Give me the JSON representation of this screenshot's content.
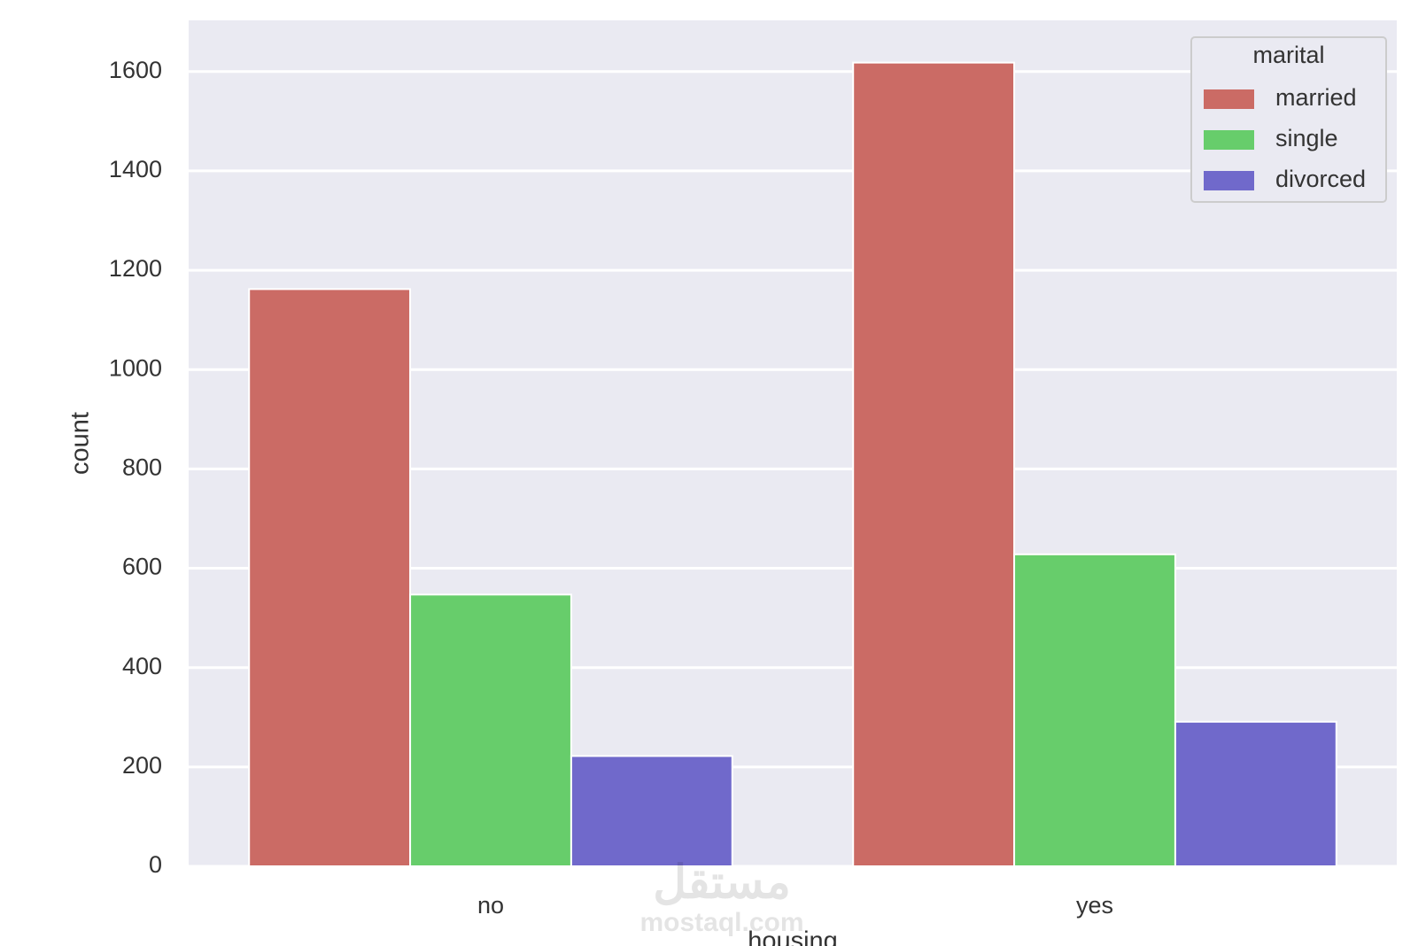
{
  "chart_data": {
    "type": "bar",
    "x_label": "housing",
    "y_label": "count",
    "categories": [
      "no",
      "yes"
    ],
    "series": [
      {
        "name": "married",
        "color": "#cb6b65",
        "values": [
          1162,
          1618
        ]
      },
      {
        "name": "single",
        "color": "#67cd6b",
        "values": [
          547,
          628
        ]
      },
      {
        "name": "divorced",
        "color": "#7069cb",
        "values": [
          222,
          291
        ]
      }
    ],
    "legend_title": "marital",
    "legend": "upper right",
    "ylim": [
      0,
      1703
    ],
    "yticks": [
      0,
      200,
      400,
      600,
      800,
      1000,
      1200,
      1400,
      1600
    ],
    "grid": true,
    "watermark": [
      "مستقل",
      "mostaql.com"
    ]
  }
}
